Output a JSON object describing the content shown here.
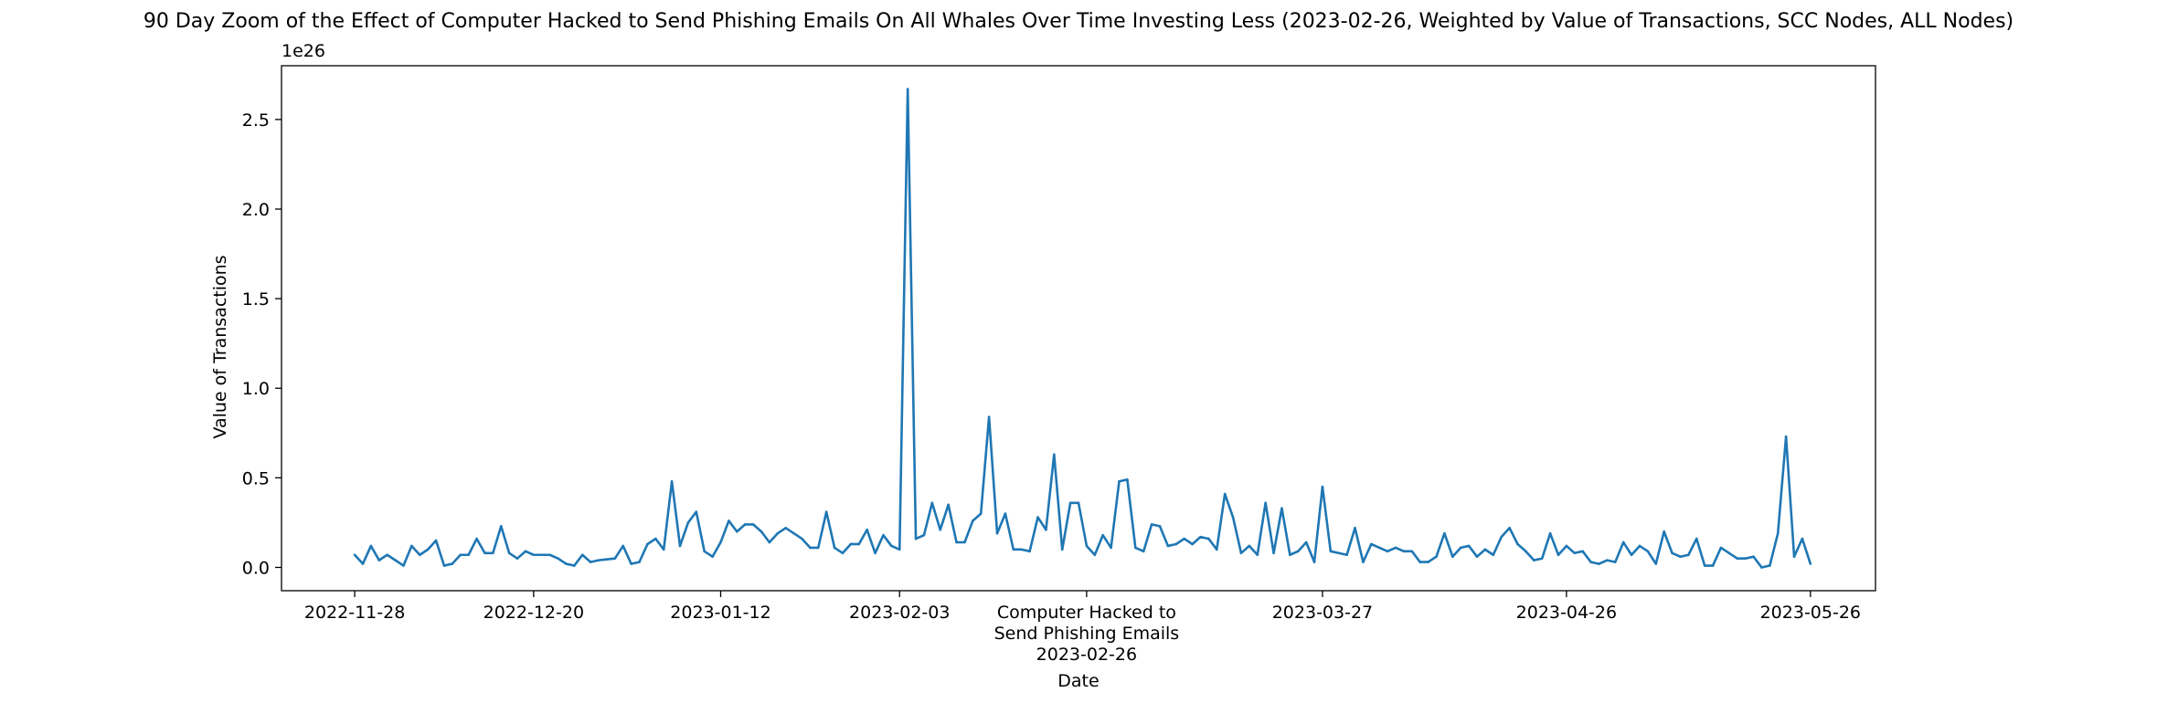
{
  "chart_data": {
    "type": "line",
    "title": "90 Day Zoom of the Effect of Computer Hacked to Send Phishing Emails On All Whales Over Time Investing Less (2023-02-26, Weighted by Value of Transactions, SCC Nodes, ALL Nodes)",
    "xlabel": "Date",
    "ylabel": "Value of Transactions",
    "y_offset_label": "1e26",
    "y_scale": 1e+26,
    "xlim": [
      "2022-11-19",
      "2023-06-03"
    ],
    "ylim": [
      -0.13,
      2.8
    ],
    "x_ticks": [
      "2022-11-28",
      "2022-12-20",
      "2023-01-12",
      "2023-02-03",
      "2023-02-26",
      "2023-03-27",
      "2023-04-26",
      "2023-05-26"
    ],
    "x_tick_labels": [
      "2022-11-28",
      "2022-12-20",
      "2023-01-12",
      "2023-02-03",
      "Computer Hacked to\nSend Phishing Emails\n2023-02-26",
      "2023-03-27",
      "2023-04-26",
      "2023-05-26"
    ],
    "y_ticks": [
      0.0,
      0.5,
      1.0,
      1.5,
      2.0,
      2.5
    ],
    "y_tick_labels": [
      "0.0",
      "0.5",
      "1.0",
      "1.5",
      "2.0",
      "2.5"
    ],
    "grid": false,
    "line_color": "#1f77b4",
    "series": [
      {
        "x_start": "2022-11-28",
        "x_step_days": 1,
        "values": [
          0.07,
          0.02,
          0.12,
          0.04,
          0.07,
          0.04,
          0.01,
          0.12,
          0.07,
          0.1,
          0.15,
          0.01,
          0.02,
          0.07,
          0.07,
          0.16,
          0.08,
          0.08,
          0.23,
          0.08,
          0.05,
          0.09,
          0.07,
          0.07,
          0.07,
          0.05,
          0.02,
          0.01,
          0.07,
          0.03,
          0.04,
          0.045,
          0.05,
          0.12,
          0.02,
          0.03,
          0.13,
          0.16,
          0.1,
          0.48,
          0.12,
          0.25,
          0.31,
          0.09,
          0.06,
          0.14,
          0.26,
          0.2,
          0.24,
          0.24,
          0.2,
          0.14,
          0.19,
          0.22,
          0.19,
          0.16,
          0.11,
          0.11,
          0.31,
          0.11,
          0.08,
          0.13,
          0.13,
          0.21,
          0.08,
          0.18,
          0.12,
          0.1,
          2.67,
          0.16,
          0.18,
          0.36,
          0.21,
          0.35,
          0.14,
          0.14,
          0.26,
          0.3,
          0.84,
          0.19,
          0.3,
          0.1,
          0.1,
          0.09,
          0.28,
          0.21,
          0.63,
          0.1,
          0.36,
          0.36,
          0.12,
          0.07,
          0.18,
          0.11,
          0.48,
          0.49,
          0.11,
          0.09,
          0.24,
          0.23,
          0.12,
          0.13,
          0.16,
          0.13,
          0.17,
          0.16,
          0.1,
          0.41,
          0.28,
          0.08,
          0.12,
          0.07,
          0.36,
          0.08,
          0.33,
          0.07,
          0.09,
          0.14,
          0.03,
          0.45,
          0.09,
          0.08,
          0.07,
          0.22,
          0.03,
          0.13,
          0.11,
          0.09,
          0.11,
          0.09,
          0.09,
          0.03,
          0.03,
          0.06,
          0.19,
          0.06,
          0.11,
          0.12,
          0.06,
          0.1,
          0.07,
          0.17,
          0.22,
          0.13,
          0.09,
          0.04,
          0.05,
          0.19,
          0.07,
          0.12,
          0.08,
          0.09,
          0.03,
          0.02,
          0.04,
          0.03,
          0.14,
          0.07,
          0.12,
          0.09,
          0.02,
          0.2,
          0.08,
          0.06,
          0.07,
          0.16,
          0.01,
          0.01,
          0.11,
          0.08,
          0.05,
          0.05,
          0.06,
          0.0,
          0.01,
          0.19,
          0.73,
          0.06,
          0.16,
          0.02
        ]
      }
    ]
  }
}
